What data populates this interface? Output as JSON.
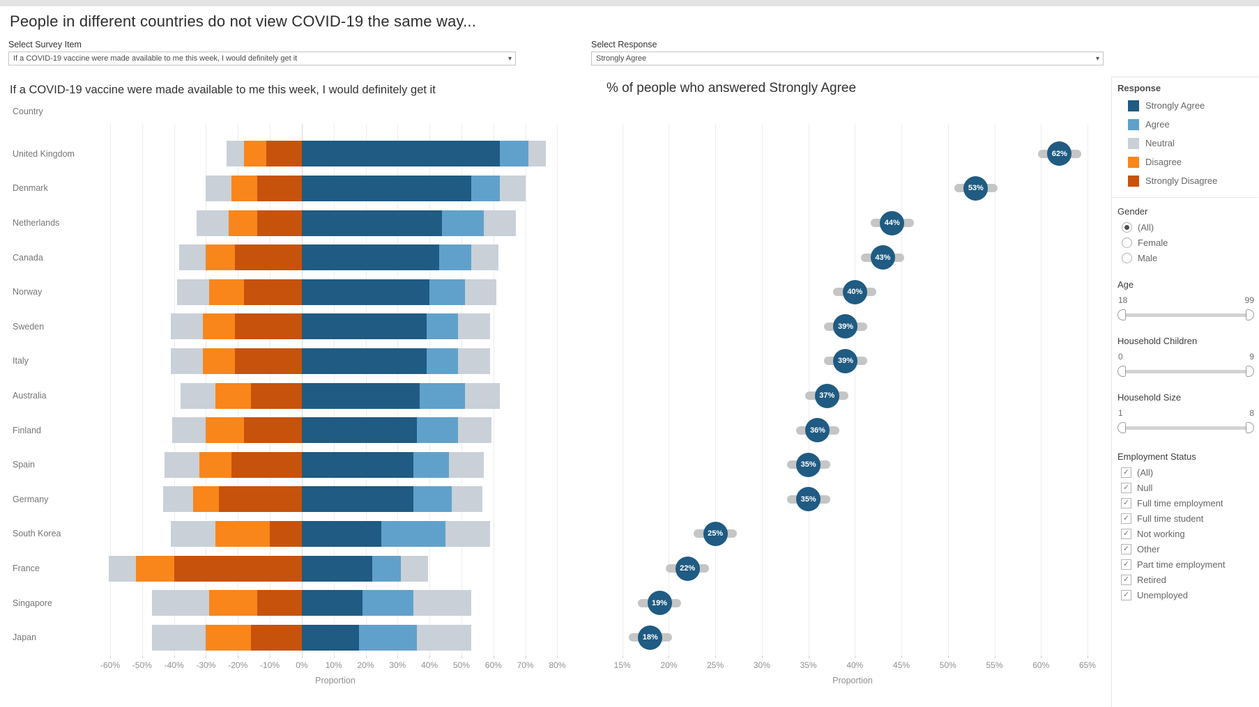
{
  "page": {
    "title": "People in different countries do not view COVID-19 the same way..."
  },
  "filters": {
    "survey_item": {
      "label": "Select Survey Item",
      "value": "If a COVID-19 vaccine were made available to me this week, I would definitely get it"
    },
    "response": {
      "label": "Select Response",
      "value": "Strongly Agree"
    }
  },
  "colors": {
    "strongly_agree": "#1f5b82",
    "agree": "#60a1cb",
    "neutral": "#c9d0d8",
    "disagree": "#f8861b",
    "strongly_disagree": "#c7520b",
    "dot": "#1f5b82",
    "whisker": "#c5c5c5"
  },
  "chart_data": [
    {
      "type": "bar",
      "subtype": "diverging-stacked-likert",
      "title": "If a COVID-19 vaccine were made available to me this week, I would definitely get it",
      "row_header": "Country",
      "xlabel": "Proportion",
      "xlim": [
        -60,
        80
      ],
      "x_ticks": [
        "-60%",
        "-50%",
        "-40%",
        "-30%",
        "-20%",
        "-10%",
        "0%",
        "10%",
        "20%",
        "30%",
        "40%",
        "50%",
        "60%",
        "70%",
        "80%"
      ],
      "grid": true,
      "stack_order": [
        "Neutral (left half)",
        "Disagree",
        "Strongly Disagree",
        "Strongly Agree",
        "Agree",
        "Neutral (right half)"
      ],
      "categories": [
        "United Kingdom",
        "Denmark",
        "Netherlands",
        "Canada",
        "Norway",
        "Sweden",
        "Italy",
        "Australia",
        "Finland",
        "Spain",
        "Germany",
        "South Korea",
        "France",
        "Singapore",
        "Japan"
      ],
      "series": [
        {
          "name": "Strongly Agree",
          "values": [
            62,
            53,
            44,
            43,
            40,
            39,
            39,
            37,
            36,
            35,
            35,
            25,
            22,
            19,
            18
          ]
        },
        {
          "name": "Agree",
          "values": [
            9,
            9,
            13,
            10,
            11,
            10,
            10,
            14,
            13,
            11,
            12,
            20,
            9,
            16,
            18
          ]
        },
        {
          "name": "Neutral",
          "values": [
            11,
            16,
            20,
            17,
            20,
            20,
            20,
            22,
            21,
            22,
            19,
            28,
            17,
            36,
            34
          ]
        },
        {
          "name": "Disagree",
          "values": [
            7,
            8,
            9,
            9,
            11,
            10,
            10,
            11,
            12,
            10,
            8,
            17,
            12,
            15,
            14
          ]
        },
        {
          "name": "Strongly Disagree",
          "values": [
            11,
            14,
            14,
            21,
            18,
            21,
            21,
            16,
            18,
            22,
            26,
            10,
            40,
            14,
            16
          ]
        }
      ]
    },
    {
      "type": "scatter",
      "subtype": "labeled-dot-plot",
      "title": "% of people who answered Strongly Agree",
      "xlabel": "Proportion",
      "xlim": [
        13,
        66.5
      ],
      "x_ticks": [
        "15%",
        "20%",
        "25%",
        "30%",
        "35%",
        "40%",
        "45%",
        "50%",
        "55%",
        "60%",
        "65%"
      ],
      "grid": true,
      "categories": [
        "United Kingdom",
        "Denmark",
        "Netherlands",
        "Canada",
        "Norway",
        "Sweden",
        "Italy",
        "Australia",
        "Finland",
        "Spain",
        "Germany",
        "South Korea",
        "France",
        "Singapore",
        "Japan"
      ],
      "values": [
        62,
        53,
        44,
        43,
        40,
        39,
        39,
        37,
        36,
        35,
        35,
        25,
        22,
        19,
        18
      ],
      "point_labels": [
        "62%",
        "53%",
        "44%",
        "43%",
        "40%",
        "39%",
        "39%",
        "37%",
        "36%",
        "35%",
        "35%",
        "25%",
        "22%",
        "19%",
        "18%"
      ]
    }
  ],
  "sidebar": {
    "response_legend": {
      "title": "Response",
      "items": [
        {
          "label": "Strongly Agree",
          "color": "#1f5b82"
        },
        {
          "label": "Agree",
          "color": "#60a1cb"
        },
        {
          "label": "Neutral",
          "color": "#c9d0d8"
        },
        {
          "label": "Disagree",
          "color": "#f8861b"
        },
        {
          "label": "Strongly Disagree",
          "color": "#c7520b"
        }
      ]
    },
    "gender": {
      "title": "Gender",
      "options": [
        {
          "label": "(All)",
          "selected": true
        },
        {
          "label": "Female",
          "selected": false
        },
        {
          "label": "Male",
          "selected": false
        }
      ]
    },
    "sliders": [
      {
        "title": "Age",
        "min": "18",
        "max": "99"
      },
      {
        "title": "Household Children",
        "min": "0",
        "max": "9"
      },
      {
        "title": "Household Size",
        "min": "1",
        "max": "8"
      }
    ],
    "employment": {
      "title": "Employment Status",
      "options": [
        {
          "label": "(All)",
          "checked": true
        },
        {
          "label": "Null",
          "checked": true
        },
        {
          "label": "Full time employment",
          "checked": true
        },
        {
          "label": "Full time student",
          "checked": true
        },
        {
          "label": "Not working",
          "checked": true
        },
        {
          "label": "Other",
          "checked": true
        },
        {
          "label": "Part time employment",
          "checked": true
        },
        {
          "label": "Retired",
          "checked": true
        },
        {
          "label": "Unemployed",
          "checked": true
        }
      ]
    }
  }
}
